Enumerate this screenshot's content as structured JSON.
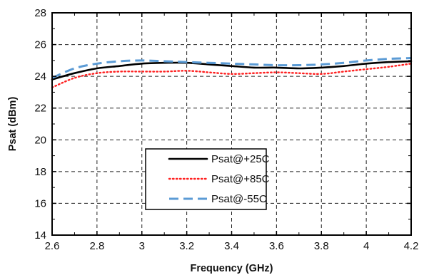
{
  "chart_data": {
    "type": "line",
    "xlabel": "Frequency (GHz)",
    "ylabel": "Psat (dBm)",
    "xlim": [
      2.6,
      4.2
    ],
    "ylim": [
      14,
      28
    ],
    "xticks": [
      2.6,
      2.8,
      3.0,
      3.2,
      3.4,
      3.6,
      3.8,
      4.0,
      4.2
    ],
    "xtick_labels": [
      "2.6",
      "2.8",
      "3",
      "3.2",
      "3.4",
      "3.6",
      "3.8",
      "4",
      "4.2"
    ],
    "yticks": [
      14,
      16,
      18,
      20,
      22,
      24,
      26,
      28
    ],
    "ytick_labels": [
      "14",
      "16",
      "18",
      "20",
      "22",
      "24",
      "26",
      "28"
    ],
    "grid": true,
    "legend_position": "center-bottom",
    "series": [
      {
        "name": "Psat@+25C",
        "color": "#000000",
        "style": "solid",
        "x": [
          2.6,
          2.7,
          2.8,
          2.9,
          3.0,
          3.1,
          3.2,
          3.3,
          3.4,
          3.5,
          3.6,
          3.7,
          3.8,
          3.9,
          4.0,
          4.1,
          4.2
        ],
        "y": [
          23.8,
          24.2,
          24.5,
          24.65,
          24.8,
          24.85,
          24.85,
          24.75,
          24.65,
          24.55,
          24.55,
          24.5,
          24.55,
          24.65,
          24.8,
          24.9,
          24.95
        ]
      },
      {
        "name": "Psat@+85C",
        "color": "#ff2020",
        "style": "dotted",
        "x": [
          2.6,
          2.7,
          2.8,
          2.9,
          3.0,
          3.1,
          3.2,
          3.3,
          3.4,
          3.5,
          3.6,
          3.7,
          3.8,
          3.9,
          4.0,
          4.1,
          4.2
        ],
        "y": [
          23.3,
          23.9,
          24.2,
          24.3,
          24.3,
          24.3,
          24.35,
          24.25,
          24.15,
          24.2,
          24.25,
          24.2,
          24.15,
          24.3,
          24.45,
          24.6,
          24.8
        ]
      },
      {
        "name": "Psat@-55C",
        "color": "#5b9bd5",
        "style": "dashed",
        "x": [
          2.6,
          2.7,
          2.8,
          2.9,
          3.0,
          3.1,
          3.2,
          3.3,
          3.4,
          3.5,
          3.6,
          3.7,
          3.8,
          3.9,
          4.0,
          4.1,
          4.2
        ],
        "y": [
          23.9,
          24.5,
          24.8,
          24.95,
          25.0,
          24.95,
          24.9,
          24.85,
          24.8,
          24.75,
          24.7,
          24.7,
          24.75,
          24.85,
          25.0,
          25.1,
          25.15
        ]
      }
    ]
  }
}
